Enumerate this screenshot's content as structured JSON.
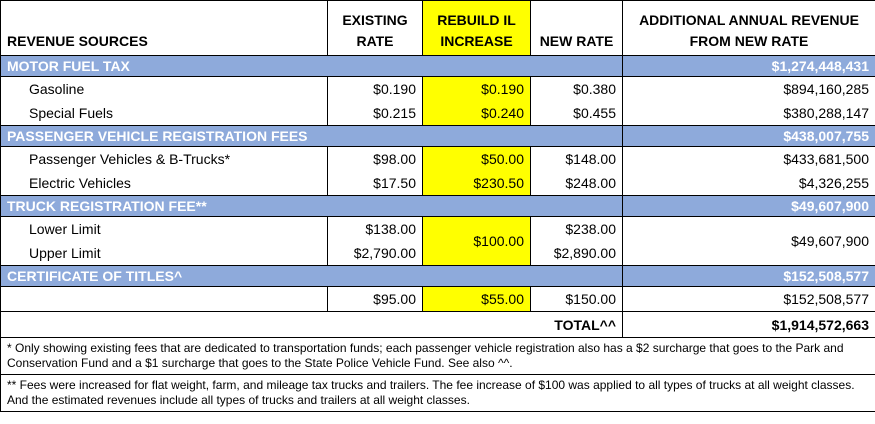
{
  "table": {
    "header": [
      "REVENUE SOURCES",
      "EXISTING RATE",
      "REBUILD IL INCREASE",
      "NEW RATE",
      "ADDITIONAL ANNUAL REVENUE FROM NEW RATE"
    ],
    "sections": [
      {
        "title": "MOTOR FUEL TAX",
        "total": "$1,274,448,431",
        "rows": [
          {
            "label": "Gasoline",
            "existing": "$0.190",
            "increase": "$0.190",
            "new": "$0.380",
            "revenue": "$894,160,285"
          },
          {
            "label": "Special Fuels",
            "existing": "$0.215",
            "increase": "$0.240",
            "new": "$0.455",
            "revenue": "$380,288,147"
          }
        ]
      },
      {
        "title": "PASSENGER VEHICLE REGISTRATION FEES",
        "total": "$438,007,755",
        "rows": [
          {
            "label": "Passenger Vehicles & B-Trucks*",
            "existing": "$98.00",
            "increase": "$50.00",
            "new": "$148.00",
            "revenue": "$433,681,500"
          },
          {
            "label": "Electric Vehicles",
            "existing": "$17.50",
            "increase": "$230.50",
            "new": "$248.00",
            "revenue": "$4,326,255"
          }
        ]
      },
      {
        "title": "TRUCK REGISTRATION FEE**",
        "total": "$49,607,900",
        "increase": "$100.00",
        "revenue": "$49,607,900",
        "rows": [
          {
            "label": "Lower Limit",
            "existing": "$138.00",
            "new": "$238.00"
          },
          {
            "label": "Upper Limit",
            "existing": "$2,790.00",
            "new": "$2,890.00"
          }
        ]
      },
      {
        "title": "CERTIFICATE OF TITLES^",
        "total": "$152,508,577",
        "rows": [
          {
            "existing": "$95.00",
            "increase": "$55.00",
            "new": "$150.00",
            "revenue": "$152,508,577"
          }
        ]
      }
    ],
    "total": {
      "label": "TOTAL^^",
      "value": "$1,914,572,663"
    },
    "footnotes": [
      "* Only showing existing fees that are dedicated to transportation funds; each passenger vehicle registration also has a $2 surcharge that goes to the Park and Conservation Fund and a $1 surcharge that goes to the State Police Vehicle Fund.  See also ^^.",
      "** Fees were increased for flat weight, farm, and mileage tax trucks and trailers. The fee increase of $100 was applied to all types of trucks at all weight classes.  And the estimated revenues include all types of trucks and trailers at all weight classes."
    ]
  }
}
